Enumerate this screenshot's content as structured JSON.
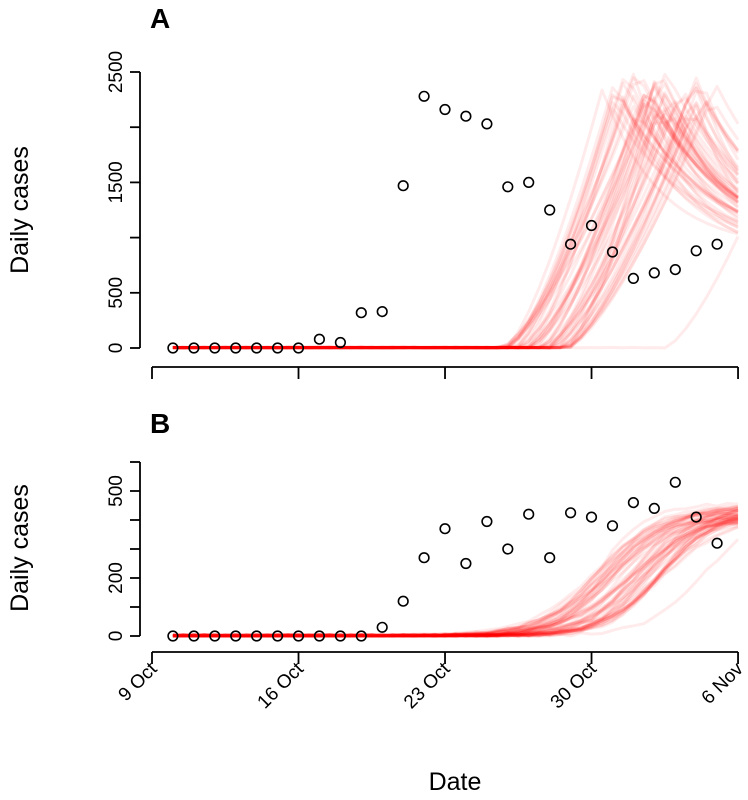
{
  "xlabel": "Date",
  "x_tick_labels": [
    "9 Oct",
    "16 Oct",
    "23 Oct",
    "30 Oct",
    "6 Nov"
  ],
  "colors": {
    "simulation": "#ff0000",
    "observed_point": "#000000",
    "axis": "#000000"
  },
  "chart_data": [
    {
      "type": "line",
      "panel_label": "A",
      "ylabel": "Daily cases",
      "ylim": [
        0,
        2500
      ],
      "yticks": [
        0,
        500,
        1500,
        2500
      ],
      "x_dates": [
        "2009-10-10",
        "2009-10-11",
        "2009-10-12",
        "2009-10-13",
        "2009-10-14",
        "2009-10-15",
        "2009-10-16",
        "2009-10-17",
        "2009-10-18",
        "2009-10-19",
        "2009-10-20",
        "2009-10-21",
        "2009-10-22",
        "2009-10-23",
        "2009-10-24",
        "2009-10-25",
        "2009-10-26",
        "2009-10-27",
        "2009-10-28",
        "2009-10-29",
        "2009-10-30",
        "2009-10-31",
        "2009-11-01",
        "2009-11-02",
        "2009-11-03",
        "2009-11-04",
        "2009-11-05"
      ],
      "observed": [
        0,
        0,
        0,
        0,
        0,
        0,
        0,
        80,
        50,
        320,
        330,
        1470,
        2280,
        2160,
        2100,
        2030,
        1460,
        1500,
        1250,
        940,
        1110,
        870,
        630,
        680,
        710,
        880,
        940
      ],
      "simulations": {
        "count": 60,
        "description_of_series": "stochastic model trajectories"
      }
    },
    {
      "type": "line",
      "panel_label": "B",
      "ylabel": "Daily cases",
      "ylim": [
        0,
        600
      ],
      "yticks": [
        0,
        200,
        500
      ],
      "x_dates": [
        "2009-10-10",
        "2009-10-11",
        "2009-10-12",
        "2009-10-13",
        "2009-10-14",
        "2009-10-15",
        "2009-10-16",
        "2009-10-17",
        "2009-10-18",
        "2009-10-19",
        "2009-10-20",
        "2009-10-21",
        "2009-10-22",
        "2009-10-23",
        "2009-10-24",
        "2009-10-25",
        "2009-10-26",
        "2009-10-27",
        "2009-10-28",
        "2009-10-29",
        "2009-10-30",
        "2009-10-31",
        "2009-11-01",
        "2009-11-02",
        "2009-11-03",
        "2009-11-04",
        "2009-11-05"
      ],
      "observed": [
        0,
        0,
        0,
        0,
        0,
        0,
        0,
        0,
        0,
        0,
        30,
        120,
        270,
        370,
        250,
        395,
        300,
        420,
        270,
        425,
        410,
        380,
        460,
        440,
        530,
        410,
        320
      ],
      "simulations": {
        "count": 60,
        "description_of_series": "stochastic model trajectories"
      }
    }
  ]
}
